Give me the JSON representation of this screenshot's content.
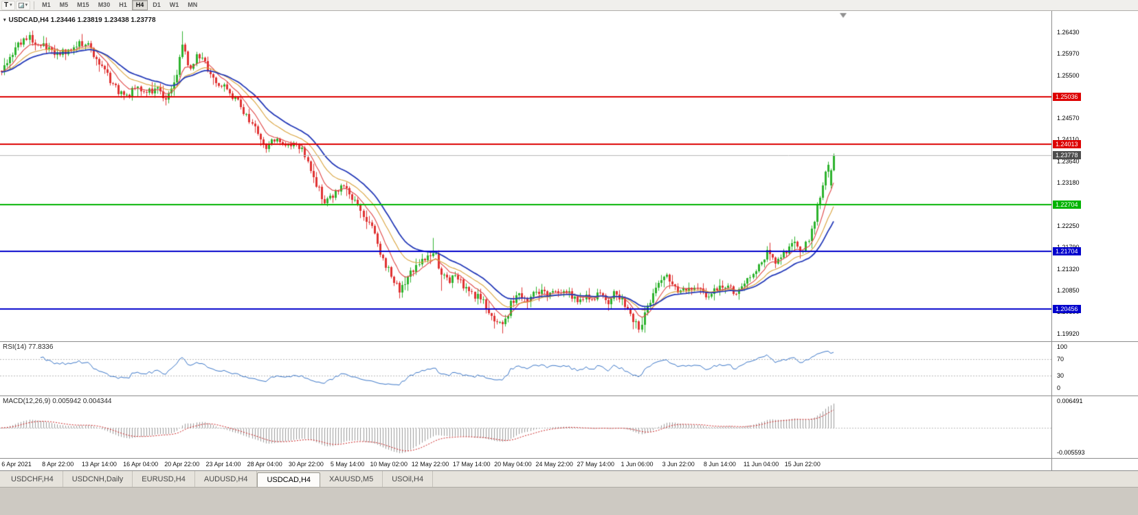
{
  "toolbar": {
    "chart_type_button": "T",
    "timeframes": [
      "M1",
      "M5",
      "M15",
      "M30",
      "H1",
      "H4",
      "D1",
      "W1",
      "MN"
    ],
    "active_timeframe": "H4"
  },
  "main_chart": {
    "title": "USDCAD,H4 1.23446 1.23819 1.23438 1.23778",
    "axis_labels": [
      "1.26430",
      "1.25970",
      "1.25500",
      "1.25040",
      "1.24570",
      "1.24110",
      "1.23640",
      "1.23180",
      "1.22710",
      "1.22250",
      "1.21790",
      "1.21320",
      "1.20850",
      "1.20390",
      "1.19920"
    ],
    "current_price_label": "1.23778",
    "levels": [
      {
        "price": 1.25036,
        "label": "1.25036",
        "color": "#dd0000"
      },
      {
        "price": 1.24013,
        "label": "1.24013",
        "color": "#dd0000"
      },
      {
        "price": 1.22704,
        "label": "1.22704",
        "color": "#00b300"
      },
      {
        "price": 1.21704,
        "label": "1.21704",
        "color": "#0000cc"
      },
      {
        "price": 1.20456,
        "label": "1.20456",
        "color": "#0000cc"
      }
    ]
  },
  "rsi_panel": {
    "title": "RSI(14) 77.8336",
    "period": 14,
    "current": 77.8336,
    "guide_levels": [
      70,
      30
    ],
    "axis_labels": [
      {
        "value": 100,
        "label": "100"
      },
      {
        "value": 70,
        "label": "70"
      },
      {
        "value": 30,
        "label": "30"
      },
      {
        "value": 0,
        "label": "0"
      }
    ]
  },
  "macd_panel": {
    "title": "MACD(12,26,9) 0.005942 0.004344",
    "fast": 12,
    "slow": 26,
    "signal": 9,
    "current_macd": 0.005942,
    "current_signal": 0.004344,
    "max_label": "0.006491",
    "min_label": "-0.005593"
  },
  "time_axis": [
    "6 Apr 2021",
    "8 Apr 22:00",
    "13 Apr 14:00",
    "16 Apr 04:00",
    "20 Apr 22:00",
    "23 Apr 14:00",
    "28 Apr 04:00",
    "30 Apr 22:00",
    "5 May 14:00",
    "10 May 02:00",
    "12 May 22:00",
    "17 May 14:00",
    "20 May 04:00",
    "24 May 22:00",
    "27 May 14:00",
    "1 Jun 06:00",
    "3 Jun 22:00",
    "8 Jun 14:00",
    "11 Jun 04:00",
    "15 Jun 22:00"
  ],
  "tabs": {
    "items": [
      "USDCHF,H4",
      "USDCNH,Daily",
      "EURUSD,H4",
      "AUDUSD,H4",
      "USDCAD,H4",
      "XAUUSD,M5",
      "USOil,H4"
    ],
    "active": "USDCAD,H4"
  },
  "colors": {
    "bull": "#2db22d",
    "bear": "#e03232",
    "rsi_line": "#3a76c8",
    "macd_hist": "#9a9a9a",
    "macd_signal": "#cc2222",
    "current_line": "#b8b8b8",
    "current_badge": "#4d4d4d",
    "guide_dash": "#b8b8b8"
  },
  "chart_data": {
    "type": "candlestick",
    "symbol": "USDCAD",
    "timeframe": "H4",
    "date_range": [
      "6 Apr 2021",
      "16 Jun 2021"
    ],
    "ohlc_current": {
      "open": 1.23446,
      "high": 1.23819,
      "low": 1.23438,
      "close": 1.23778
    },
    "current_price": 1.23778,
    "price_axis_max": 1.26889,
    "price_axis_min": 1.19757,
    "candle_count": 300,
    "noise_amplitude": 0.0016,
    "wick_amplitude": 0.0018,
    "close_path": [
      [
        0.0,
        1.256
      ],
      [
        0.017,
        1.261
      ],
      [
        0.033,
        1.263
      ],
      [
        0.05,
        1.2615
      ],
      [
        0.065,
        1.259
      ],
      [
        0.08,
        1.2605
      ],
      [
        0.1,
        1.2622
      ],
      [
        0.112,
        1.259
      ],
      [
        0.125,
        1.2555
      ],
      [
        0.14,
        1.2515
      ],
      [
        0.152,
        1.2502
      ],
      [
        0.163,
        1.253
      ],
      [
        0.173,
        1.2508
      ],
      [
        0.185,
        1.2525
      ],
      [
        0.197,
        1.2502
      ],
      [
        0.21,
        1.2548
      ],
      [
        0.218,
        1.2628
      ],
      [
        0.227,
        1.2555
      ],
      [
        0.235,
        1.2598
      ],
      [
        0.245,
        1.2572
      ],
      [
        0.257,
        1.2538
      ],
      [
        0.27,
        1.2522
      ],
      [
        0.282,
        1.2498
      ],
      [
        0.294,
        1.2462
      ],
      [
        0.306,
        1.2428
      ],
      [
        0.318,
        1.2398
      ],
      [
        0.33,
        1.2408
      ],
      [
        0.343,
        1.2394
      ],
      [
        0.356,
        1.2402
      ],
      [
        0.364,
        1.2383
      ],
      [
        0.373,
        1.2338
      ],
      [
        0.382,
        1.2298
      ],
      [
        0.39,
        1.2274
      ],
      [
        0.399,
        1.2296
      ],
      [
        0.408,
        1.2312
      ],
      [
        0.42,
        1.2288
      ],
      [
        0.432,
        1.2258
      ],
      [
        0.444,
        1.2222
      ],
      [
        0.453,
        1.2178
      ],
      [
        0.462,
        1.2138
      ],
      [
        0.47,
        1.2112
      ],
      [
        0.478,
        1.2082
      ],
      [
        0.487,
        1.2112
      ],
      [
        0.496,
        1.2132
      ],
      [
        0.505,
        1.2148
      ],
      [
        0.514,
        1.216
      ],
      [
        0.52,
        1.2168
      ],
      [
        0.528,
        1.2124
      ],
      [
        0.537,
        1.2108
      ],
      [
        0.549,
        1.2116
      ],
      [
        0.558,
        1.2088
      ],
      [
        0.57,
        1.2074
      ],
      [
        0.582,
        1.2052
      ],
      [
        0.594,
        1.2022
      ],
      [
        0.603,
        1.2004
      ],
      [
        0.612,
        1.2056
      ],
      [
        0.62,
        1.2082
      ],
      [
        0.633,
        1.2068
      ],
      [
        0.645,
        1.2086
      ],
      [
        0.658,
        1.2074
      ],
      [
        0.67,
        1.2086
      ],
      [
        0.683,
        1.2078
      ],
      [
        0.695,
        1.2064
      ],
      [
        0.708,
        1.2072
      ],
      [
        0.72,
        1.2076
      ],
      [
        0.729,
        1.2048
      ],
      [
        0.737,
        1.2082
      ],
      [
        0.749,
        1.2058
      ],
      [
        0.758,
        1.2028
      ],
      [
        0.766,
        1.2
      ],
      [
        0.775,
        1.2046
      ],
      [
        0.783,
        1.2082
      ],
      [
        0.791,
        1.2102
      ],
      [
        0.8,
        1.2118
      ],
      [
        0.808,
        1.2094
      ],
      [
        0.821,
        1.208
      ],
      [
        0.833,
        1.209
      ],
      [
        0.846,
        1.2076
      ],
      [
        0.858,
        1.2086
      ],
      [
        0.871,
        1.2096
      ],
      [
        0.883,
        1.2082
      ],
      [
        0.891,
        1.2092
      ],
      [
        0.9,
        1.2112
      ],
      [
        0.912,
        1.2142
      ],
      [
        0.921,
        1.2176
      ],
      [
        0.929,
        1.2148
      ],
      [
        0.938,
        1.2162
      ],
      [
        0.946,
        1.2176
      ],
      [
        0.954,
        1.219
      ],
      [
        0.962,
        1.2172
      ],
      [
        0.967,
        1.2186
      ],
      [
        0.971,
        1.2206
      ],
      [
        0.976,
        1.2232
      ],
      [
        0.98,
        1.2262
      ],
      [
        0.984,
        1.2292
      ],
      [
        0.988,
        1.2322
      ],
      [
        0.992,
        1.2352
      ],
      [
        0.996,
        1.2368
      ],
      [
        1.0,
        1.2378
      ]
    ],
    "spikes": [
      {
        "t": 0.033,
        "high": 1.2638
      },
      {
        "t": 0.218,
        "high": 1.2646
      },
      {
        "t": 0.52,
        "high": 1.22
      },
      {
        "t": 0.527,
        "low": 1.2085
      },
      {
        "t": 0.603,
        "low": 1.1993
      },
      {
        "t": 0.766,
        "low": 1.1995
      }
    ],
    "last_candles": [
      {
        "open": 1.2312,
        "high": 1.235,
        "low": 1.2306,
        "close": 1.23446
      },
      {
        "open": 1.23446,
        "high": 1.23819,
        "low": 1.23438,
        "close": 1.23778
      }
    ],
    "moving_averages": [
      {
        "name": "fast-ma",
        "period": 8,
        "color": "#e04545",
        "width": 1.1
      },
      {
        "name": "mid-ma",
        "period": 17,
        "color": "#d9a23a",
        "width": 1.1
      },
      {
        "name": "slow-ma",
        "period": 26,
        "color": "#2238b8",
        "width": 1.8
      }
    ]
  }
}
